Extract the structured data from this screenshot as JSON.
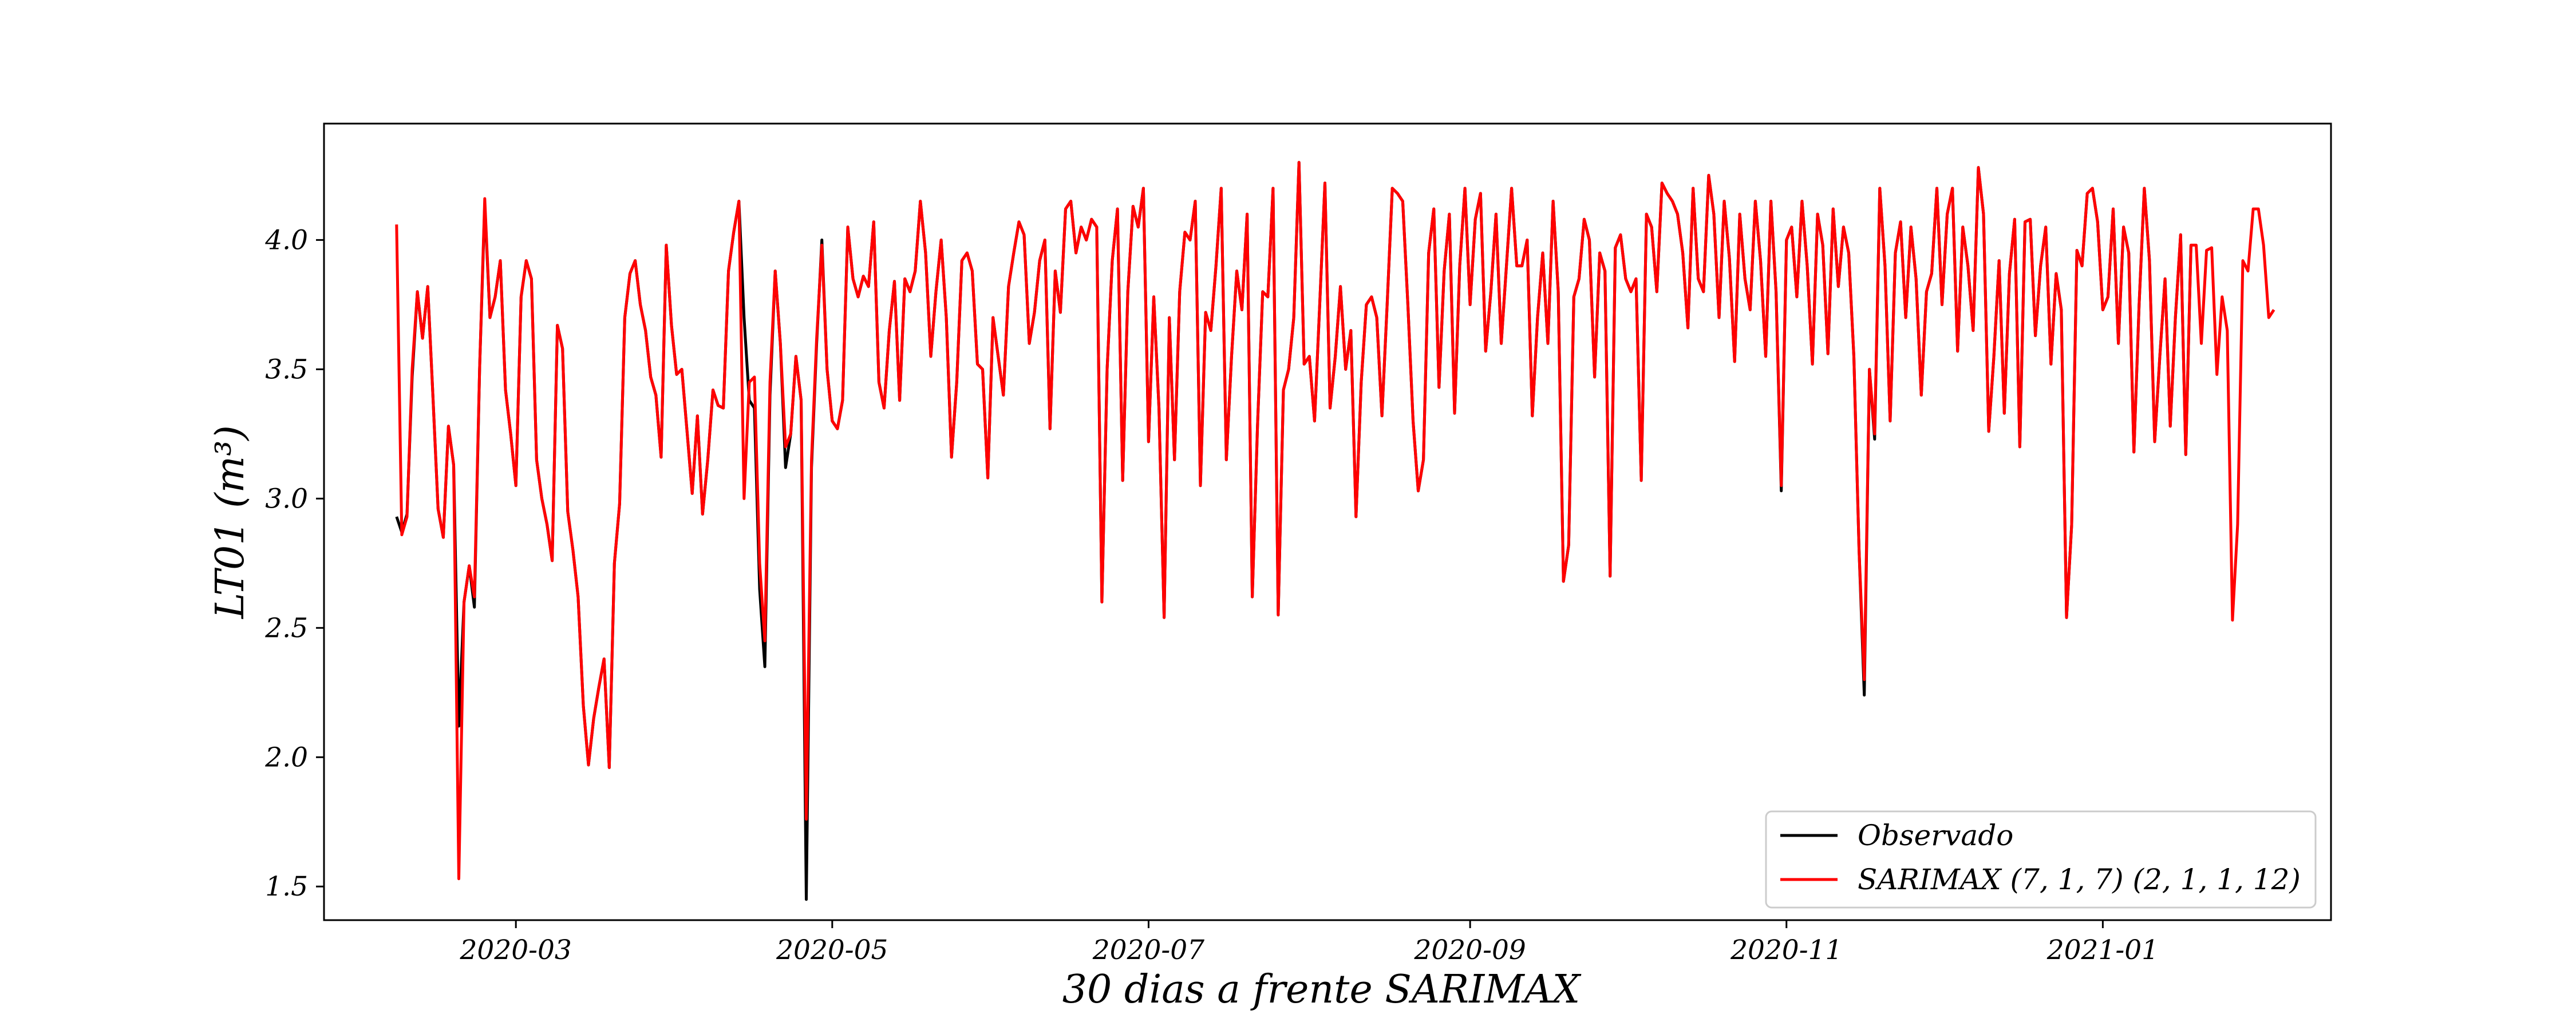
{
  "chart_data": {
    "type": "line",
    "title": "",
    "xlabel": "30 dias a frente SARIMAX",
    "ylabel": "LT01 (m³)",
    "x_range": [
      "2020-01-24",
      "2021-02-14"
    ],
    "ylim": [
      1.37,
      4.45
    ],
    "x_ticks": [
      "2020-03",
      "2020-05",
      "2020-07",
      "2020-09",
      "2020-11",
      "2021-01"
    ],
    "y_ticks": [
      "1.5",
      "2.0",
      "2.5",
      "3.0",
      "3.5",
      "4.0"
    ],
    "grid": false,
    "legend_position": "lower-right",
    "start_date": "2020-02-07",
    "series": [
      {
        "name": "Observado",
        "color": "#000000",
        "values": [
          2.93,
          2.87,
          2.94,
          3.47,
          3.8,
          3.62,
          3.82,
          3.4,
          2.96,
          2.85,
          3.28,
          3.13,
          2.12,
          2.6,
          2.74,
          2.58,
          3.5,
          4.14,
          3.7,
          3.78,
          3.92,
          3.42,
          3.25,
          3.05,
          3.78,
          3.92,
          3.85,
          3.15,
          3.0,
          2.9,
          2.76,
          3.67,
          3.58,
          2.95,
          2.8,
          2.62,
          2.2,
          1.97,
          2.15,
          2.27,
          2.38,
          1.96,
          2.75,
          2.98,
          3.7,
          3.87,
          3.92,
          3.75,
          3.65,
          3.47,
          3.4,
          3.16,
          3.98,
          3.67,
          3.48,
          3.5,
          3.26,
          3.02,
          3.32,
          2.94,
          3.15,
          3.42,
          3.36,
          3.35,
          3.88,
          4.03,
          4.15,
          3.7,
          3.38,
          3.35,
          2.65,
          2.35,
          3.4,
          3.88,
          3.6,
          3.12,
          3.25,
          3.55,
          3.38,
          1.45,
          3.12,
          3.6,
          4.0,
          3.5,
          3.3,
          3.27,
          3.38,
          4.05,
          3.85,
          3.78,
          3.86,
          3.82,
          4.07,
          3.45,
          3.35,
          3.65,
          3.84,
          3.38,
          3.85,
          3.8,
          3.88,
          4.15,
          3.95,
          3.55,
          3.8,
          4.0,
          3.7,
          3.16,
          3.45,
          3.92,
          3.95,
          3.88,
          3.52,
          3.5,
          3.08,
          3.7,
          3.55,
          3.4,
          3.82,
          3.95,
          4.07,
          4.02,
          3.6,
          3.72,
          3.92,
          4.0,
          3.27,
          3.88,
          3.72,
          4.12,
          4.15,
          3.95,
          4.05,
          4.0,
          4.08,
          4.05,
          2.6,
          3.5,
          3.92,
          4.12,
          3.07,
          3.8,
          4.13,
          4.05,
          4.2,
          3.22,
          3.78,
          3.35,
          2.54,
          3.7,
          3.15,
          3.8,
          4.03,
          4.0,
          4.15,
          3.05,
          3.72,
          3.65,
          3.9,
          4.2,
          3.15,
          3.55,
          3.88,
          3.73,
          4.1,
          2.62,
          3.28,
          3.8,
          3.78,
          4.2,
          2.55,
          3.42,
          3.5,
          3.7,
          4.3,
          3.52,
          3.55,
          3.3,
          3.75,
          4.22,
          3.35,
          3.55,
          3.82,
          3.5,
          3.65,
          2.93,
          3.45,
          3.75,
          3.78,
          3.7,
          3.32,
          3.75,
          4.2,
          4.18,
          4.15,
          3.75,
          3.3,
          3.03,
          3.15,
          3.95,
          4.12,
          3.43,
          3.88,
          4.1,
          3.33,
          3.9,
          4.2,
          3.75,
          4.08,
          4.18,
          3.57,
          3.8,
          4.1,
          3.6,
          3.9,
          4.2,
          3.9,
          3.9,
          4.0,
          3.32,
          3.7,
          3.95,
          3.6,
          4.15,
          3.8,
          2.68,
          2.82,
          3.78,
          3.85,
          4.08,
          4.0,
          3.47,
          3.95,
          3.88,
          2.7,
          3.97,
          4.02,
          3.85,
          3.8,
          3.85,
          3.07,
          4.1,
          4.05,
          3.8,
          4.22,
          4.18,
          4.15,
          4.1,
          3.95,
          3.66,
          4.2,
          3.85,
          3.8,
          4.25,
          4.1,
          3.7,
          4.15,
          3.93,
          3.53,
          4.1,
          3.85,
          3.73,
          4.15,
          3.92,
          3.55,
          4.15,
          3.8,
          3.03,
          4.0,
          4.05,
          3.78,
          4.15,
          3.9,
          3.52,
          4.1,
          3.98,
          3.56,
          4.12,
          3.82,
          4.05,
          3.95,
          3.55,
          2.8,
          2.24,
          3.5,
          3.23,
          4.2,
          3.9,
          3.3,
          3.95,
          4.07,
          3.7,
          4.05,
          3.85,
          3.4,
          3.8,
          3.87,
          4.2,
          3.75,
          4.1,
          4.2,
          3.57,
          4.05,
          3.9,
          3.65,
          4.28,
          4.1,
          3.26,
          3.55,
          3.92,
          3.33,
          3.87,
          4.08,
          3.2,
          4.07,
          4.08,
          3.63,
          3.9,
          4.05,
          3.52,
          3.87,
          3.73,
          2.54,
          2.9,
          3.96,
          3.9,
          4.18,
          4.2,
          4.07,
          3.73,
          3.78,
          4.12,
          3.6,
          4.05,
          3.95,
          3.18,
          3.75,
          4.2,
          3.92,
          3.22,
          3.55,
          3.85,
          3.28,
          3.7,
          4.02,
          3.17,
          3.98,
          3.98,
          3.6,
          3.96,
          3.97,
          3.48,
          3.78,
          3.65,
          2.53,
          2.9,
          3.92,
          3.88,
          4.12,
          4.12,
          3.98,
          3.7,
          3.73
        ],
        "last_index": 346
      },
      {
        "name": "SARIMAX (7, 1, 7) (2, 1, 1, 12)",
        "color": "#ff0000",
        "values": [
          4.06,
          2.86,
          2.93,
          3.5,
          3.8,
          3.62,
          3.82,
          3.4,
          2.96,
          2.85,
          3.28,
          3.13,
          1.53,
          2.6,
          2.74,
          2.62,
          3.5,
          4.16,
          3.7,
          3.78,
          3.92,
          3.42,
          3.25,
          3.05,
          3.78,
          3.92,
          3.85,
          3.15,
          3.0,
          2.9,
          2.76,
          3.67,
          3.58,
          2.95,
          2.8,
          2.62,
          2.2,
          1.97,
          2.15,
          2.27,
          2.38,
          1.96,
          2.75,
          2.98,
          3.7,
          3.87,
          3.92,
          3.75,
          3.65,
          3.47,
          3.4,
          3.16,
          3.98,
          3.67,
          3.48,
          3.5,
          3.26,
          3.02,
          3.32,
          2.94,
          3.15,
          3.42,
          3.36,
          3.35,
          3.88,
          4.03,
          4.15,
          3.0,
          3.45,
          3.47,
          2.75,
          2.45,
          3.45,
          3.88,
          3.6,
          3.2,
          3.25,
          3.55,
          3.38,
          1.76,
          3.15,
          3.62,
          3.98,
          3.5,
          3.3,
          3.27,
          3.38,
          4.05,
          3.85,
          3.78,
          3.86,
          3.82,
          4.07,
          3.45,
          3.35,
          3.65,
          3.84,
          3.38,
          3.85,
          3.8,
          3.88,
          4.15,
          3.95,
          3.55,
          3.8,
          4.0,
          3.7,
          3.16,
          3.45,
          3.92,
          3.95,
          3.88,
          3.52,
          3.5,
          3.08,
          3.7,
          3.55,
          3.4,
          3.82,
          3.95,
          4.07,
          4.02,
          3.6,
          3.72,
          3.92,
          4.0,
          3.27,
          3.88,
          3.72,
          4.12,
          4.15,
          3.95,
          4.05,
          4.0,
          4.08,
          4.05,
          2.6,
          3.5,
          3.92,
          4.12,
          3.07,
          3.8,
          4.13,
          4.05,
          4.2,
          3.22,
          3.78,
          3.35,
          2.54,
          3.7,
          3.15,
          3.8,
          4.03,
          4.0,
          4.15,
          3.05,
          3.72,
          3.65,
          3.9,
          4.2,
          3.15,
          3.55,
          3.88,
          3.73,
          4.1,
          2.62,
          3.28,
          3.8,
          3.78,
          4.2,
          2.55,
          3.42,
          3.5,
          3.7,
          4.3,
          3.52,
          3.55,
          3.3,
          3.75,
          4.22,
          3.35,
          3.55,
          3.82,
          3.5,
          3.65,
          2.93,
          3.45,
          3.75,
          3.78,
          3.7,
          3.32,
          3.75,
          4.2,
          4.18,
          4.15,
          3.75,
          3.3,
          3.03,
          3.15,
          3.95,
          4.12,
          3.43,
          3.88,
          4.1,
          3.33,
          3.9,
          4.2,
          3.75,
          4.08,
          4.18,
          3.57,
          3.8,
          4.1,
          3.6,
          3.9,
          4.2,
          3.9,
          3.9,
          4.0,
          3.32,
          3.7,
          3.95,
          3.6,
          4.15,
          3.8,
          2.68,
          2.82,
          3.78,
          3.85,
          4.08,
          4.0,
          3.47,
          3.95,
          3.88,
          2.7,
          3.97,
          4.02,
          3.85,
          3.8,
          3.85,
          3.07,
          4.1,
          4.05,
          3.8,
          4.22,
          4.18,
          4.15,
          4.1,
          3.95,
          3.66,
          4.2,
          3.85,
          3.8,
          4.25,
          4.1,
          3.7,
          4.15,
          3.93,
          3.53,
          4.1,
          3.85,
          3.73,
          4.15,
          3.92,
          3.55,
          4.15,
          3.8,
          3.05,
          4.0,
          4.05,
          3.78,
          4.15,
          3.9,
          3.52,
          4.1,
          3.98,
          3.56,
          4.12,
          3.82,
          4.05,
          3.95,
          3.55,
          2.8,
          2.3,
          3.5,
          3.25,
          4.2,
          3.9,
          3.3,
          3.95,
          4.07,
          3.7,
          4.05,
          3.85,
          3.4,
          3.8,
          3.87,
          4.2,
          3.75,
          4.1,
          4.2,
          3.57,
          4.05,
          3.9,
          3.65,
          4.28,
          4.1,
          3.26,
          3.55,
          3.92,
          3.33,
          3.87,
          4.08,
          3.2,
          4.07,
          4.08,
          3.63,
          3.9,
          4.05,
          3.52,
          3.87,
          3.73,
          2.54,
          2.9,
          3.96,
          3.9,
          4.18,
          4.2,
          4.07,
          3.73,
          3.78,
          4.12,
          3.6,
          4.05,
          3.95,
          3.18,
          3.75,
          4.2,
          3.92,
          3.22,
          3.55,
          3.85,
          3.28,
          3.7,
          4.02,
          3.17,
          3.98,
          3.98,
          3.6,
          3.96,
          3.97,
          3.48,
          3.78,
          3.65,
          2.53,
          2.9,
          3.92,
          3.88,
          4.12,
          4.12,
          3.98,
          3.7,
          3.73
        ]
      }
    ]
  }
}
